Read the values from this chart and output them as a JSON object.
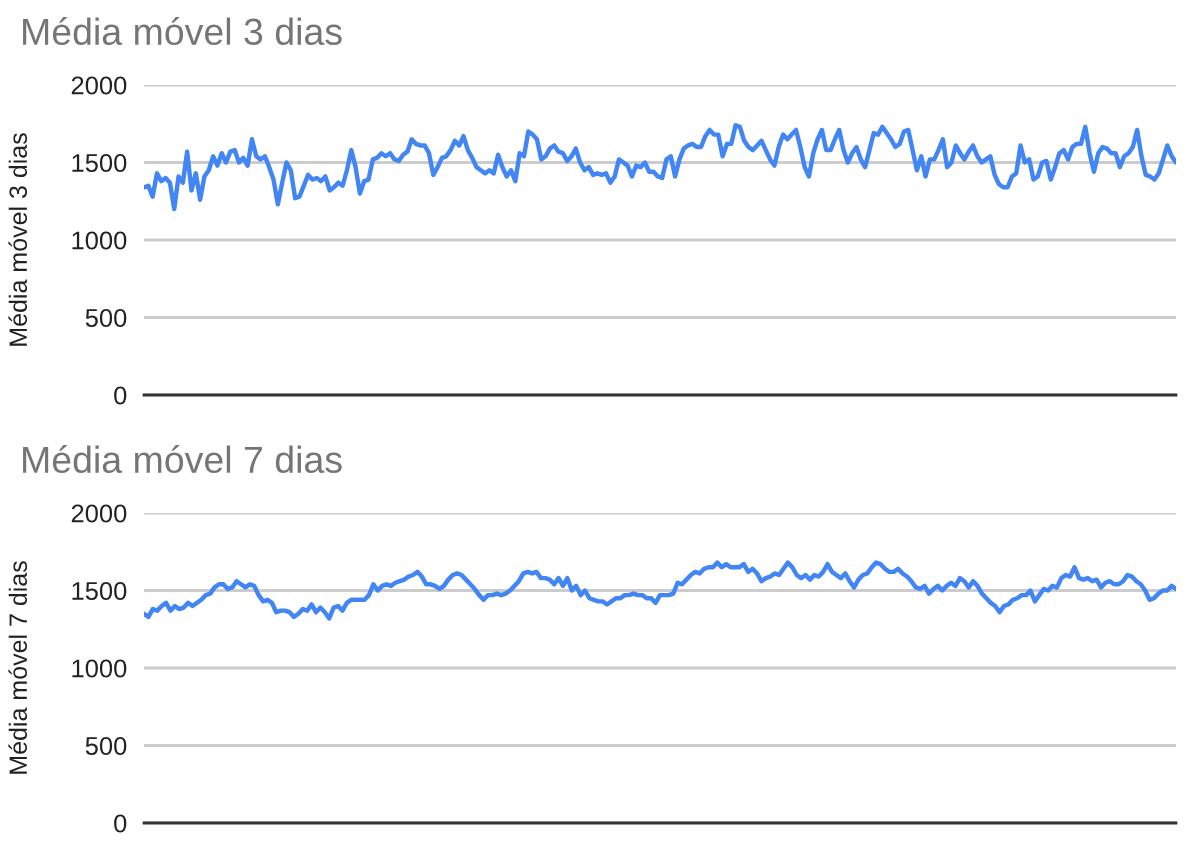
{
  "chart_data": [
    {
      "type": "line",
      "title": "Média móvel 3 dias",
      "ylabel": "Média móvel 3 dias",
      "categories": [
        null,
        null,
        null,
        null,
        null,
        null,
        null,
        null,
        null,
        null,
        null,
        null,
        null,
        null,
        null,
        null,
        null,
        null,
        null,
        null,
        null,
        null,
        null,
        null,
        null,
        null,
        null,
        null,
        null,
        null,
        null,
        null,
        null,
        null,
        null,
        null,
        null,
        null,
        null,
        null,
        null,
        null,
        null,
        null,
        null,
        null,
        null,
        null,
        null,
        null,
        null,
        null,
        null,
        null,
        null,
        null,
        null,
        null,
        null,
        null,
        null,
        null,
        null,
        null,
        null,
        null,
        null,
        null,
        null,
        null,
        null,
        null,
        null,
        null,
        null,
        null,
        null,
        null,
        null,
        null,
        null,
        null,
        null,
        null,
        null,
        null,
        null,
        null,
        null,
        null,
        null,
        null,
        null,
        null,
        null,
        null,
        null,
        null,
        null,
        null,
        null,
        null,
        null,
        null,
        null,
        null,
        null,
        null,
        null,
        null,
        null,
        null,
        null,
        null,
        null,
        null,
        null,
        null,
        null,
        null,
        null,
        null,
        null,
        null,
        null,
        null,
        null,
        null,
        null,
        null,
        null,
        null,
        null,
        null,
        null,
        null,
        null,
        null,
        null,
        null,
        null,
        null,
        null,
        null,
        null,
        null,
        null,
        null,
        null,
        null,
        null,
        null,
        null,
        null,
        null,
        null,
        null,
        null,
        null,
        null,
        null,
        null,
        null,
        null,
        null,
        null,
        null,
        null,
        null,
        null,
        null,
        null,
        null,
        null,
        null,
        null,
        null,
        null,
        null,
        null,
        null,
        null,
        null,
        null,
        null,
        null,
        null,
        null,
        null,
        null,
        null,
        null,
        null,
        null,
        null,
        null,
        null,
        null,
        null,
        null,
        null,
        null,
        null,
        null,
        null,
        null,
        null,
        null,
        null,
        null,
        null,
        null,
        null,
        null,
        null,
        null,
        null,
        null,
        null,
        null,
        null,
        null,
        null,
        null,
        null,
        null,
        null,
        null,
        null,
        null,
        null,
        null,
        null,
        null,
        null,
        null,
        null,
        null,
        null,
        null
      ],
      "series": [
        {
          "color": "#4285f4",
          "values": [
            1340,
            1350,
            1280,
            1430,
            1380,
            1400,
            1370,
            1200,
            1410,
            1370,
            1570,
            1320,
            1430,
            1260,
            1410,
            1450,
            1540,
            1480,
            1560,
            1500,
            1570,
            1580,
            1500,
            1530,
            1480,
            1650,
            1540,
            1520,
            1540,
            1470,
            1390,
            1230,
            1370,
            1500,
            1450,
            1270,
            1280,
            1350,
            1420,
            1390,
            1400,
            1380,
            1410,
            1320,
            1340,
            1370,
            1350,
            1450,
            1580,
            1470,
            1300,
            1380,
            1390,
            1520,
            1530,
            1560,
            1540,
            1560,
            1520,
            1510,
            1550,
            1570,
            1650,
            1620,
            1610,
            1610,
            1560,
            1420,
            1470,
            1530,
            1540,
            1580,
            1640,
            1610,
            1670,
            1580,
            1530,
            1470,
            1450,
            1430,
            1450,
            1430,
            1550,
            1470,
            1410,
            1450,
            1380,
            1560,
            1540,
            1700,
            1680,
            1650,
            1520,
            1540,
            1590,
            1610,
            1570,
            1560,
            1510,
            1540,
            1590,
            1500,
            1450,
            1470,
            1420,
            1430,
            1420,
            1430,
            1370,
            1410,
            1520,
            1500,
            1480,
            1410,
            1480,
            1470,
            1500,
            1440,
            1440,
            1410,
            1400,
            1520,
            1540,
            1410,
            1520,
            1590,
            1610,
            1620,
            1600,
            1600,
            1670,
            1710,
            1680,
            1680,
            1540,
            1620,
            1620,
            1740,
            1730,
            1640,
            1600,
            1580,
            1610,
            1640,
            1580,
            1520,
            1480,
            1600,
            1680,
            1650,
            1680,
            1710,
            1600,
            1470,
            1410,
            1560,
            1650,
            1710,
            1580,
            1580,
            1650,
            1710,
            1580,
            1500,
            1560,
            1600,
            1520,
            1470,
            1580,
            1690,
            1680,
            1730,
            1690,
            1650,
            1600,
            1620,
            1700,
            1710,
            1580,
            1450,
            1540,
            1410,
            1520,
            1520,
            1580,
            1650,
            1470,
            1500,
            1610,
            1560,
            1520,
            1570,
            1610,
            1540,
            1500,
            1520,
            1540,
            1420,
            1360,
            1340,
            1340,
            1410,
            1430,
            1610,
            1500,
            1520,
            1390,
            1410,
            1500,
            1510,
            1390,
            1470,
            1560,
            1580,
            1520,
            1600,
            1620,
            1620,
            1730,
            1560,
            1440,
            1560,
            1600,
            1590,
            1560,
            1560,
            1470,
            1540,
            1560,
            1600,
            1710,
            1540,
            1420,
            1410,
            1390,
            1430,
            1520,
            1610,
            1540,
            1500
          ]
        }
      ],
      "ylim": [
        0,
        2000
      ],
      "yticks": [
        0,
        500,
        1000,
        1500,
        2000
      ],
      "grid": "y",
      "tick_labels": "y",
      "line_style": "solid"
    },
    {
      "type": "line",
      "title": "Média móvel 7 dias",
      "ylabel": "Média móvel 7 dias",
      "categories": [
        null,
        null,
        null,
        null,
        null,
        null,
        null,
        null,
        null,
        null,
        null,
        null,
        null,
        null,
        null,
        null,
        null,
        null,
        null,
        null,
        null,
        null,
        null,
        null,
        null,
        null,
        null,
        null,
        null,
        null,
        null,
        null,
        null,
        null,
        null,
        null,
        null,
        null,
        null,
        null,
        null,
        null,
        null,
        null,
        null,
        null,
        null,
        null,
        null,
        null,
        null,
        null,
        null,
        null,
        null,
        null,
        null,
        null,
        null,
        null,
        null,
        null,
        null,
        null,
        null,
        null,
        null,
        null,
        null,
        null,
        null,
        null,
        null,
        null,
        null,
        null,
        null,
        null,
        null,
        null,
        null,
        null,
        null,
        null,
        null,
        null,
        null,
        null,
        null,
        null,
        null,
        null,
        null,
        null,
        null,
        null,
        null,
        null,
        null,
        null,
        null,
        null,
        null,
        null,
        null,
        null,
        null,
        null,
        null,
        null,
        null,
        null,
        null,
        null,
        null,
        null,
        null,
        null,
        null,
        null,
        null,
        null,
        null,
        null,
        null,
        null,
        null,
        null,
        null,
        null,
        null,
        null,
        null,
        null,
        null,
        null,
        null,
        null,
        null,
        null,
        null,
        null,
        null,
        null,
        null,
        null,
        null,
        null,
        null,
        null,
        null,
        null,
        null,
        null,
        null,
        null,
        null,
        null,
        null,
        null,
        null,
        null,
        null,
        null,
        null,
        null,
        null,
        null,
        null,
        null,
        null,
        null,
        null,
        null,
        null,
        null,
        null,
        null,
        null,
        null,
        null,
        null,
        null,
        null,
        null,
        null,
        null,
        null,
        null,
        null,
        null,
        null,
        null,
        null,
        null,
        null,
        null,
        null,
        null,
        null,
        null,
        null,
        null,
        null,
        null,
        null,
        null,
        null,
        null,
        null,
        null,
        null,
        null,
        null,
        null,
        null,
        null,
        null,
        null,
        null,
        null,
        null,
        null,
        null,
        null,
        null,
        null,
        null,
        null,
        null,
        null,
        null,
        null,
        null,
        null
      ],
      "series": [
        {
          "color": "#4285f4",
          "values": [
            1350,
            1330,
            1380,
            1370,
            1400,
            1420,
            1370,
            1400,
            1380,
            1390,
            1420,
            1400,
            1420,
            1440,
            1470,
            1480,
            1520,
            1540,
            1540,
            1510,
            1520,
            1560,
            1540,
            1520,
            1540,
            1530,
            1470,
            1430,
            1440,
            1420,
            1360,
            1370,
            1370,
            1360,
            1330,
            1350,
            1380,
            1370,
            1410,
            1360,
            1390,
            1360,
            1320,
            1390,
            1400,
            1370,
            1420,
            1440,
            1440,
            1440,
            1440,
            1470,
            1540,
            1500,
            1530,
            1540,
            1530,
            1550,
            1560,
            1570,
            1590,
            1600,
            1620,
            1590,
            1540,
            1540,
            1530,
            1510,
            1530,
            1570,
            1600,
            1610,
            1600,
            1570,
            1540,
            1510,
            1470,
            1440,
            1470,
            1470,
            1480,
            1470,
            1480,
            1500,
            1530,
            1560,
            1610,
            1620,
            1610,
            1620,
            1580,
            1580,
            1570,
            1540,
            1580,
            1530,
            1580,
            1500,
            1530,
            1470,
            1500,
            1450,
            1440,
            1430,
            1430,
            1410,
            1430,
            1450,
            1450,
            1470,
            1470,
            1480,
            1470,
            1470,
            1450,
            1450,
            1420,
            1470,
            1470,
            1470,
            1480,
            1550,
            1540,
            1570,
            1600,
            1620,
            1610,
            1640,
            1650,
            1650,
            1680,
            1650,
            1670,
            1650,
            1650,
            1650,
            1670,
            1620,
            1640,
            1610,
            1560,
            1580,
            1590,
            1610,
            1600,
            1640,
            1680,
            1650,
            1600,
            1580,
            1600,
            1570,
            1600,
            1590,
            1620,
            1670,
            1620,
            1600,
            1580,
            1610,
            1560,
            1520,
            1570,
            1600,
            1610,
            1650,
            1680,
            1670,
            1640,
            1620,
            1620,
            1640,
            1610,
            1590,
            1560,
            1520,
            1510,
            1530,
            1480,
            1510,
            1530,
            1500,
            1530,
            1550,
            1530,
            1580,
            1560,
            1520,
            1560,
            1530,
            1480,
            1450,
            1420,
            1400,
            1360,
            1400,
            1410,
            1440,
            1450,
            1470,
            1470,
            1500,
            1430,
            1470,
            1510,
            1500,
            1530,
            1520,
            1580,
            1600,
            1590,
            1650,
            1580,
            1570,
            1580,
            1560,
            1570,
            1520,
            1550,
            1560,
            1540,
            1540,
            1560,
            1600,
            1590,
            1560,
            1540,
            1500,
            1440,
            1450,
            1480,
            1500,
            1500,
            1530,
            1510
          ]
        }
      ],
      "ylim": [
        0,
        2000
      ],
      "yticks": [
        0,
        500,
        1000,
        1500,
        2000
      ],
      "grid": "y",
      "tick_labels": "y",
      "line_style": "solid"
    }
  ]
}
